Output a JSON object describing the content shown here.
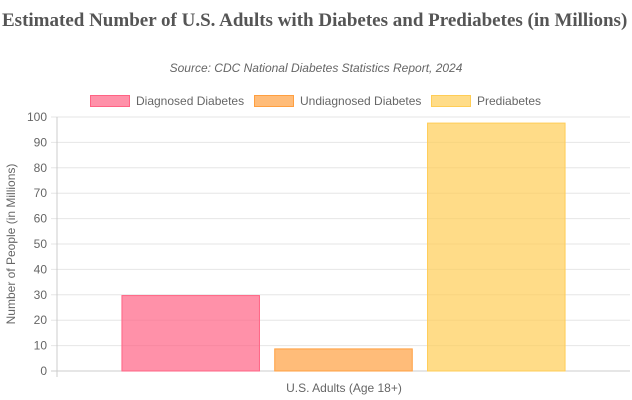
{
  "chart_data": {
    "type": "bar",
    "title": "Estimated Number of U.S. Adults with Diabetes and Prediabetes (in Millions)",
    "subtitle": "Source: CDC National Diabetes Statistics Report, 2024",
    "categories": [
      "U.S. Adults (Age 18+)"
    ],
    "series": [
      {
        "name": "Diagnosed Diabetes",
        "values": [
          29.7
        ],
        "color": "#ff6384",
        "fill": "rgba(255,99,132,0.7)"
      },
      {
        "name": "Undiagnosed Diabetes",
        "values": [
          8.7
        ],
        "color": "#ff9f40",
        "fill": "rgba(255,159,64,0.7)"
      },
      {
        "name": "Prediabetes",
        "values": [
          97.6
        ],
        "color": "#ffcd56",
        "fill": "rgba(255,205,86,0.7)"
      }
    ],
    "xlabel": "U.S. Adults (Age 18+)",
    "ylabel": "Number of People (in Millions)",
    "ylim": [
      0,
      100
    ],
    "yticks": [
      "0",
      "10",
      "20",
      "30",
      "40",
      "50",
      "60",
      "70",
      "80",
      "90",
      "100"
    ],
    "grid": true,
    "legend_position": "top"
  }
}
